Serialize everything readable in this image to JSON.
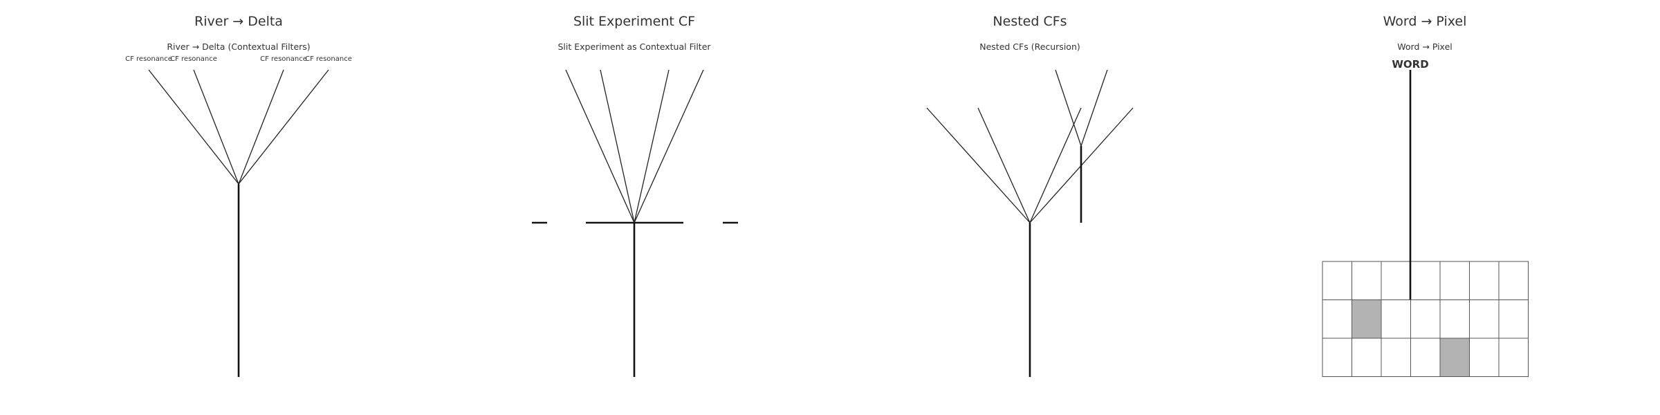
{
  "panels": [
    {
      "title": "River → Delta",
      "subtitle": "River → Delta (Contextual Filters)",
      "branch_labels": [
        "CF resonance",
        "CF resonance",
        "CF resonance",
        "CF resonance"
      ]
    },
    {
      "title": "Slit Experiment CF",
      "subtitle": "Slit Experiment as Contextual Filter"
    },
    {
      "title": "Nested CFs",
      "subtitle": "Nested CFs (Recursion)"
    },
    {
      "title": "Word → Pixel",
      "subtitle": "Word → Pixel",
      "word_label": "WORD",
      "pixel_grid": {
        "rows": 3,
        "cols": 7,
        "filled": [
          [
            1,
            1
          ],
          [
            2,
            4
          ]
        ]
      }
    }
  ],
  "colors": {
    "line": "#222222",
    "filled_pixel": "#b3b3b3"
  }
}
